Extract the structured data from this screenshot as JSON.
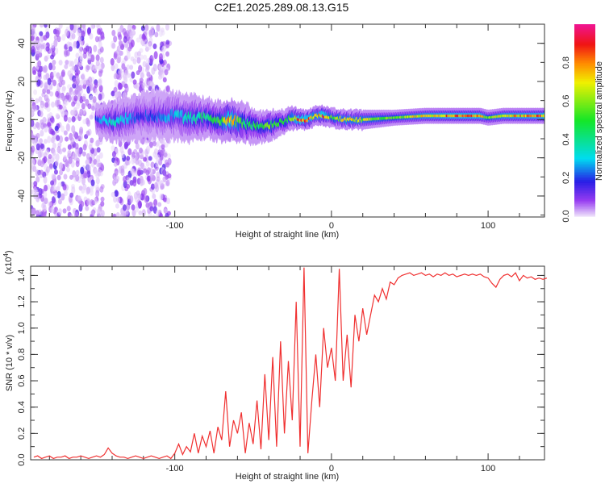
{
  "chart_data": [
    {
      "type": "heatmap",
      "title": "C2E1.2025.289.08.13.G15",
      "xlabel": "Height of straight line (km)",
      "ylabel": "Frequency (Hz)",
      "xlim": [
        -192,
        136
      ],
      "ylim": [
        -51,
        50
      ],
      "xticks": [
        -100,
        0,
        100
      ],
      "yticks": [
        -40,
        -20,
        0,
        20,
        40
      ],
      "colorbar": {
        "label": "Normalized spectral amplitude",
        "range": [
          0,
          1
        ],
        "ticks": [
          "0.0",
          "0.2",
          "0.4",
          "0.6",
          "0.8"
        ]
      },
      "noise_region_km": [
        -192,
        -103
      ],
      "noise_gap_km": [
        -146,
        -140
      ],
      "ridge": [
        {
          "x": -150,
          "f": 0,
          "amp": 0.2,
          "spread": 4
        },
        {
          "x": -140,
          "f": -1,
          "amp": 0.4,
          "spread": 5
        },
        {
          "x": -120,
          "f": 2,
          "amp": 0.2,
          "spread": 6
        },
        {
          "x": -100,
          "f": 2,
          "amp": 0.3,
          "spread": 6
        },
        {
          "x": -90,
          "f": 1,
          "amp": 0.4,
          "spread": 6
        },
        {
          "x": -80,
          "f": 1,
          "amp": 0.45,
          "spread": 5
        },
        {
          "x": -70,
          "f": -1,
          "amp": 0.6,
          "spread": 5
        },
        {
          "x": -65,
          "f": 0,
          "amp": 0.9,
          "spread": 5
        },
        {
          "x": -55,
          "f": -2,
          "amp": 0.5,
          "spread": 5
        },
        {
          "x": -45,
          "f": -4,
          "amp": 0.5,
          "spread": 4
        },
        {
          "x": -40,
          "f": -3,
          "amp": 0.6,
          "spread": 4
        },
        {
          "x": -30,
          "f": -1,
          "amp": 0.5,
          "spread": 3
        },
        {
          "x": -25,
          "f": 1,
          "amp": 0.7,
          "spread": 3
        },
        {
          "x": -20,
          "f": 0,
          "amp": 0.9,
          "spread": 2.5
        },
        {
          "x": -15,
          "f": 0,
          "amp": 0.9,
          "spread": 2.5
        },
        {
          "x": -10,
          "f": 2,
          "amp": 0.7,
          "spread": 2.5
        },
        {
          "x": -5,
          "f": 2,
          "amp": 0.95,
          "spread": 2.5
        },
        {
          "x": 0,
          "f": 1,
          "amp": 0.6,
          "spread": 2.5
        },
        {
          "x": 10,
          "f": 0,
          "amp": 0.75,
          "spread": 2.5
        },
        {
          "x": 20,
          "f": 0,
          "amp": 0.7,
          "spread": 2.5
        },
        {
          "x": 40,
          "f": 1,
          "amp": 0.6,
          "spread": 2
        },
        {
          "x": 60,
          "f": 2,
          "amp": 0.8,
          "spread": 2
        },
        {
          "x": 80,
          "f": 2,
          "amp": 0.9,
          "spread": 2
        },
        {
          "x": 95,
          "f": 2,
          "amp": 0.9,
          "spread": 2
        },
        {
          "x": 100,
          "f": 1,
          "amp": 0.6,
          "spread": 2
        },
        {
          "x": 110,
          "f": 2,
          "amp": 0.8,
          "spread": 2
        },
        {
          "x": 135,
          "f": 2,
          "amp": 0.9,
          "spread": 2
        }
      ]
    },
    {
      "type": "line",
      "xlabel": "Height of straight line (km)",
      "ylabel": "SNR (10 * v/v)",
      "yscale_label": "(x10",
      "yscale_exp": "4",
      "xlim": [
        -192,
        136
      ],
      "ylim": [
        0,
        1.47
      ],
      "xticks": [
        -100,
        0,
        100
      ],
      "yticks": [
        "0.0",
        "0.2",
        "0.4",
        "0.6",
        "0.8",
        "1.0",
        "1.2",
        "1.4"
      ],
      "color": "#f03030",
      "x_start": -190,
      "x_step": 2.5,
      "values": [
        0.02,
        0.03,
        0.01,
        0.02,
        0.03,
        0.01,
        0.02,
        0.02,
        0.03,
        0.01,
        0.02,
        0.02,
        0.03,
        0.02,
        0.01,
        0.02,
        0.03,
        0.02,
        0.04,
        0.09,
        0.05,
        0.03,
        0.02,
        0.02,
        0.01,
        0.02,
        0.03,
        0.02,
        0.01,
        0.02,
        0.03,
        0.02,
        0.01,
        0.02,
        0.03,
        0.01,
        0.05,
        0.12,
        0.04,
        0.1,
        0.06,
        0.2,
        0.05,
        0.18,
        0.1,
        0.22,
        0.05,
        0.25,
        0.15,
        0.52,
        0.1,
        0.3,
        0.2,
        0.36,
        0.05,
        0.28,
        0.12,
        0.45,
        0.08,
        0.65,
        0.15,
        0.78,
        0.1,
        0.9,
        0.2,
        0.75,
        0.3,
        1.2,
        0.1,
        1.46,
        0.05,
        0.45,
        0.8,
        0.4,
        1.0,
        0.7,
        0.85,
        0.6,
        1.45,
        0.6,
        0.95,
        0.55,
        1.1,
        0.9,
        1.15,
        0.95,
        1.1,
        1.25,
        1.2,
        1.3,
        1.22,
        1.35,
        1.33,
        1.38,
        1.4,
        1.41,
        1.42,
        1.4,
        1.41,
        1.42,
        1.4,
        1.41,
        1.39,
        1.41,
        1.4,
        1.42,
        1.4,
        1.41,
        1.39,
        1.4,
        1.41,
        1.4,
        1.41,
        1.4,
        1.41,
        1.39,
        1.38,
        1.34,
        1.31,
        1.37,
        1.4,
        1.41,
        1.39,
        1.42,
        1.36,
        1.4,
        1.38,
        1.39,
        1.37,
        1.38,
        1.37,
        1.38
      ]
    }
  ]
}
